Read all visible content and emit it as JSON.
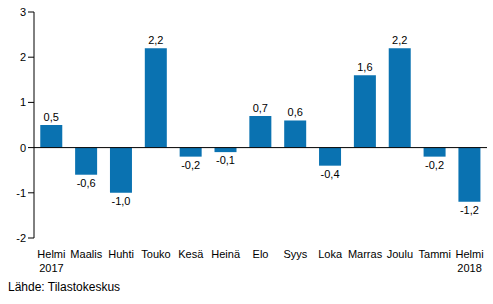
{
  "chart_data": {
    "type": "bar",
    "categories": [
      "Helmi 2017",
      "Maalis",
      "Huhti",
      "Touko",
      "Kesä",
      "Heinä",
      "Elo",
      "Syys",
      "Loka",
      "Marras",
      "Joulu",
      "Tammi",
      "Helmi 2018"
    ],
    "values": [
      0.5,
      -0.6,
      -1.0,
      2.2,
      -0.2,
      -0.1,
      0.7,
      0.6,
      -0.4,
      1.6,
      2.2,
      -0.2,
      -1.2
    ],
    "value_labels": [
      "0,5",
      "-0,6",
      "-1,0",
      "2,2",
      "-0,2",
      "-0,1",
      "0,7",
      "0,6",
      "-0,4",
      "1,6",
      "2,2",
      "-0,2",
      "-1,2"
    ],
    "data_labels": true,
    "color": "#0a72b1",
    "ylim": [
      -2,
      3
    ],
    "yticks": [
      -2,
      -1,
      0,
      1,
      2,
      3
    ],
    "grid": false,
    "annotations": [
      "Lähde: Tilastokeskus"
    ]
  }
}
